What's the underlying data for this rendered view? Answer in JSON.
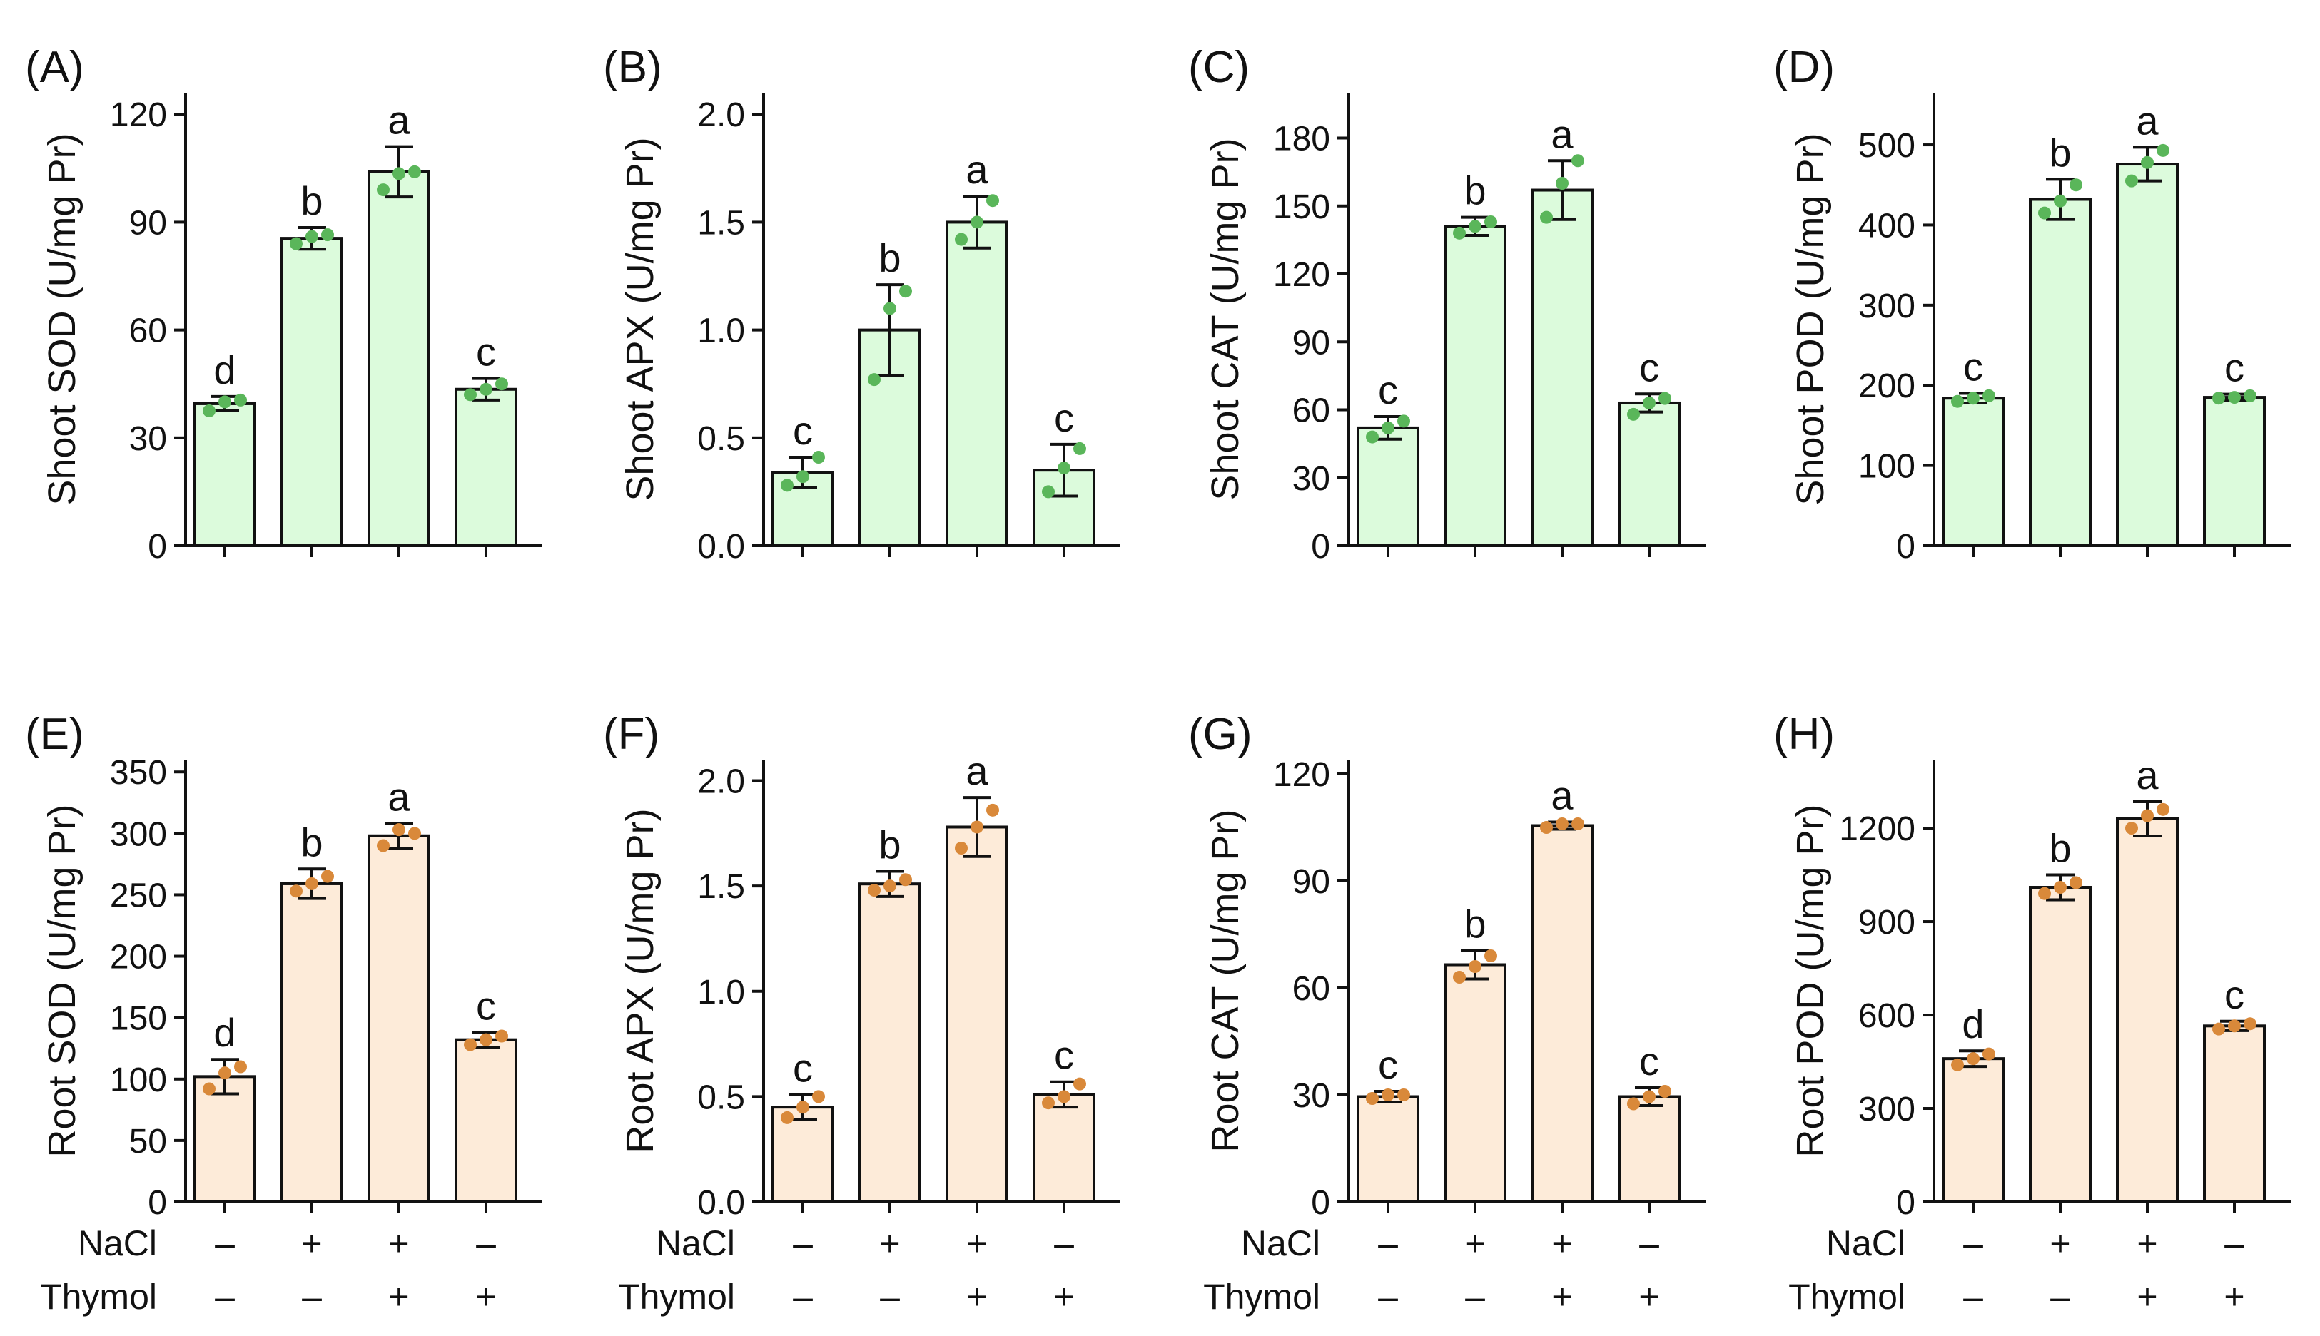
{
  "colors": {
    "shoot_fill": "#dcfbdc",
    "shoot_dot": "#5ab65a",
    "root_fill": "#fdebd9",
    "root_dot": "#d9893a",
    "edge": "#111111"
  },
  "treatments": {
    "row_labels": [
      "NaCl",
      "Thymol"
    ],
    "nacl": [
      "–",
      "+",
      "+",
      "–"
    ],
    "thymol": [
      "–",
      "–",
      "+",
      "+"
    ]
  },
  "chart_data": [
    {
      "type": "bar",
      "panel": "(A)",
      "ylabel": "Shoot SOD (U/mg Pr)",
      "ylim": [
        0,
        126
      ],
      "yticks": [
        0,
        30,
        60,
        90,
        120
      ],
      "tick_labels": [
        "0",
        "30",
        "60",
        "90",
        "120"
      ],
      "values": [
        39.5,
        85.5,
        104,
        43.5
      ],
      "errors": [
        2,
        3,
        7,
        3
      ],
      "letters": [
        "d",
        "b",
        "a",
        "c"
      ],
      "points": [
        [
          37.5,
          40,
          40.5
        ],
        [
          84,
          86,
          86.5
        ],
        [
          99,
          103.5,
          104
        ],
        [
          42,
          43.5,
          45
        ]
      ]
    },
    {
      "type": "bar",
      "panel": "(B)",
      "ylabel": "Shoot APX (U/mg Pr)",
      "ylim": [
        0,
        2.1
      ],
      "yticks": [
        0,
        0.5,
        1.0,
        1.5,
        2.0
      ],
      "tick_labels": [
        "0.0",
        "0.5",
        "1.0",
        "1.5",
        "2.0"
      ],
      "values": [
        0.34,
        1.0,
        1.5,
        0.35
      ],
      "errors": [
        0.07,
        0.21,
        0.12,
        0.12
      ],
      "letters": [
        "c",
        "b",
        "a",
        "c"
      ],
      "points": [
        [
          0.28,
          0.32,
          0.41
        ],
        [
          0.77,
          1.1,
          1.18
        ],
        [
          1.42,
          1.5,
          1.6
        ],
        [
          0.25,
          0.36,
          0.45
        ]
      ]
    },
    {
      "type": "bar",
      "panel": "(C)",
      "ylabel": "Shoot CAT (U/mg Pr)",
      "ylim": [
        0,
        200
      ],
      "yticks": [
        0,
        30,
        60,
        90,
        120,
        150,
        180
      ],
      "tick_labels": [
        "0",
        "30",
        "60",
        "90",
        "120",
        "150",
        "180"
      ],
      "values": [
        52,
        141,
        157,
        63
      ],
      "errors": [
        5,
        4,
        13,
        4
      ],
      "letters": [
        "c",
        "b",
        "a",
        "c"
      ],
      "points": [
        [
          48,
          52,
          55
        ],
        [
          138,
          141,
          143
        ],
        [
          145,
          160,
          170
        ],
        [
          58,
          63,
          65
        ]
      ]
    },
    {
      "type": "bar",
      "panel": "(D)",
      "ylabel": "Shoot POD (U/mg Pr)",
      "ylim": [
        0,
        565
      ],
      "yticks": [
        0,
        100,
        200,
        300,
        400,
        500
      ],
      "tick_labels": [
        "0",
        "100",
        "200",
        "300",
        "400",
        "500"
      ],
      "values": [
        184,
        432,
        476,
        185
      ],
      "errors": [
        6,
        25,
        21,
        4
      ],
      "letters": [
        "c",
        "b",
        "a",
        "c"
      ],
      "points": [
        [
          180,
          184,
          187
        ],
        [
          415,
          430,
          450
        ],
        [
          455,
          478,
          493
        ],
        [
          184,
          185,
          187
        ]
      ]
    },
    {
      "type": "bar",
      "panel": "(E)",
      "ylabel": "Root SOD (U/mg Pr)",
      "ylim": [
        0,
        360
      ],
      "yticks": [
        0,
        50,
        100,
        150,
        200,
        250,
        300,
        350
      ],
      "tick_labels": [
        "0",
        "50",
        "100",
        "150",
        "200",
        "250",
        "300",
        "350"
      ],
      "values": [
        102,
        259,
        298,
        132
      ],
      "errors": [
        14,
        12,
        10,
        6
      ],
      "letters": [
        "d",
        "b",
        "a",
        "c"
      ],
      "points": [
        [
          92,
          105,
          110
        ],
        [
          253,
          259,
          265
        ],
        [
          290,
          303,
          300
        ],
        [
          128,
          132,
          135
        ]
      ]
    },
    {
      "type": "bar",
      "panel": "(F)",
      "ylabel": "Root APX (U/mg Pr)",
      "ylim": [
        0,
        2.1
      ],
      "yticks": [
        0,
        0.5,
        1.0,
        1.5,
        2.0
      ],
      "tick_labels": [
        "0.0",
        "0.5",
        "1.0",
        "1.5",
        "2.0"
      ],
      "values": [
        0.45,
        1.51,
        1.78,
        0.51
      ],
      "errors": [
        0.06,
        0.06,
        0.14,
        0.06
      ],
      "letters": [
        "c",
        "b",
        "a",
        "c"
      ],
      "points": [
        [
          0.4,
          0.45,
          0.5
        ],
        [
          1.48,
          1.5,
          1.53
        ],
        [
          1.68,
          1.78,
          1.86
        ],
        [
          0.47,
          0.5,
          0.56
        ]
      ]
    },
    {
      "type": "bar",
      "panel": "(G)",
      "ylabel": "Root CAT (U/mg Pr)",
      "ylim": [
        0,
        124
      ],
      "yticks": [
        0,
        30,
        60,
        90,
        120
      ],
      "tick_labels": [
        "0",
        "30",
        "60",
        "90",
        "120"
      ],
      "values": [
        29.5,
        66.5,
        105.5,
        29.5
      ],
      "errors": [
        1.5,
        4,
        1,
        2.5
      ],
      "letters": [
        "c",
        "b",
        "a",
        "c"
      ],
      "points": [
        [
          29,
          30,
          30
        ],
        [
          63,
          66,
          69
        ],
        [
          105,
          106,
          106
        ],
        [
          27.5,
          29.5,
          31
        ]
      ]
    },
    {
      "type": "bar",
      "panel": "(H)",
      "ylabel": "Root POD (U/mg Pr)",
      "ylim": [
        0,
        1420
      ],
      "yticks": [
        0,
        300,
        600,
        900,
        1200
      ],
      "tick_labels": [
        "0",
        "300",
        "600",
        "900",
        "1200"
      ],
      "values": [
        460,
        1010,
        1230,
        565
      ],
      "errors": [
        25,
        40,
        55,
        15
      ],
      "letters": [
        "d",
        "b",
        "a",
        "c"
      ],
      "points": [
        [
          440,
          460,
          475
        ],
        [
          990,
          1010,
          1025
        ],
        [
          1200,
          1240,
          1260
        ],
        [
          555,
          565,
          572
        ]
      ]
    }
  ]
}
